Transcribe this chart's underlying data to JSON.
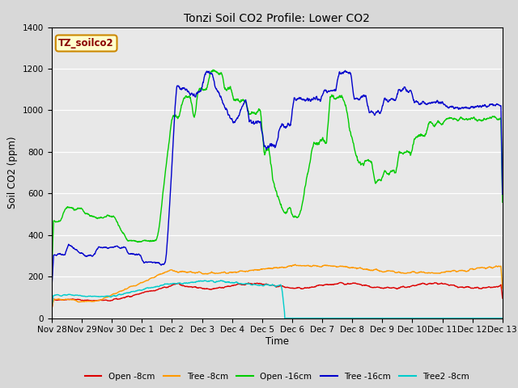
{
  "title": "Tonzi Soil CO2 Profile: Lower CO2",
  "xlabel": "Time",
  "ylabel": "Soil CO2 (ppm)",
  "ylim": [
    0,
    1400
  ],
  "yticks": [
    0,
    200,
    400,
    600,
    800,
    1000,
    1200,
    1400
  ],
  "watermark": "TZ_soilco2",
  "fig_bg": "#d8d8d8",
  "plot_bg": "#e8e8e8",
  "series": {
    "open_8cm": {
      "color": "#dd0000",
      "label": "Open -8cm",
      "lw": 1.0
    },
    "tree_8cm": {
      "color": "#ff9900",
      "label": "Tree -8cm",
      "lw": 1.0
    },
    "open_16cm": {
      "color": "#00cc00",
      "label": "Open -16cm",
      "lw": 1.0
    },
    "tree_16cm": {
      "color": "#0000cc",
      "label": "Tree -16cm",
      "lw": 1.0
    },
    "tree2_8cm": {
      "color": "#00cccc",
      "label": "Tree2 -8cm",
      "lw": 1.0
    }
  },
  "n_points": 1500,
  "xtick_labels": [
    "Nov 28",
    "Nov 29",
    "Nov 30",
    "Dec 1",
    "Dec 2",
    "Dec 3",
    "Dec 4",
    "Dec 5",
    "Dec 6",
    "Dec 7",
    "Dec 8",
    "Dec 9",
    "Dec 10",
    "Dec 11",
    "Dec 12",
    "Dec 13"
  ],
  "xtick_positions": [
    0,
    1,
    2,
    3,
    4,
    5,
    6,
    7,
    8,
    9,
    10,
    11,
    12,
    13,
    14,
    15
  ]
}
